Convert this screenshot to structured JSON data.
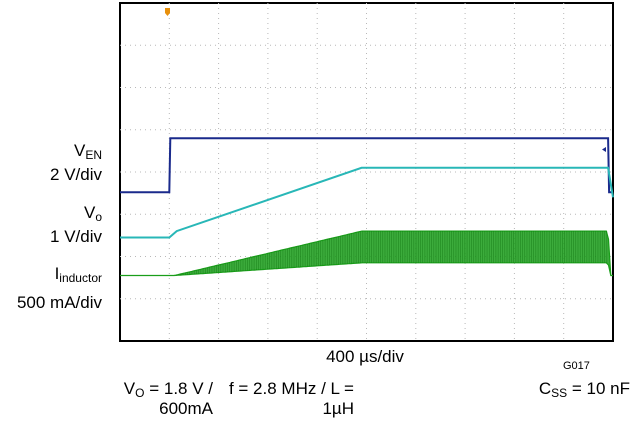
{
  "chart_data": {
    "type": "line",
    "title": "",
    "grid": true,
    "time_scale": "400 µs/div",
    "figure_id": "G017",
    "channel_labels": [
      {
        "name": "V",
        "sub": "EN",
        "scale": "2 V/div"
      },
      {
        "name": "V",
        "sub": "o",
        "scale": "1 V/div"
      },
      {
        "name": "I",
        "sub": "inductor",
        "scale": "500 mA/div"
      }
    ],
    "conditions": {
      "vo": {
        "name": "V",
        "sub": "O",
        "text1": " = 1.8 V /",
        "text2": "600mA"
      },
      "f": {
        "text1": "f = 2.8 MHz / L =",
        "text2": "1µH"
      },
      "css": {
        "name": "C",
        "sub": "SS",
        "text": " = 10 nF"
      }
    },
    "x_divisions": 10,
    "y_divisions": 8,
    "x_unit": "div",
    "series": [
      {
        "color": "#1a2a8c",
        "x": [
          0,
          1.0,
          1.02,
          9.9,
          9.92,
          10
        ],
        "y": [
          3.52,
          3.52,
          4.8,
          4.8,
          3.52,
          3.52
        ]
      },
      {
        "color": "#28b7b7",
        "x": [
          0,
          1.0,
          1.15,
          4.9,
          9.9,
          10.0,
          10.3,
          10.6,
          11
        ],
        "y": [
          2.45,
          2.45,
          2.6,
          4.1,
          4.1,
          3.4,
          2.95,
          2.75,
          2.6
        ]
      },
      {
        "color": "#1a9e1a",
        "x": [
          0,
          1.1,
          4.9,
          9.9,
          9.95,
          11
        ],
        "y": [
          1.55,
          1.55,
          2.6,
          2.6,
          1.55,
          1.55
        ],
        "ripple_low": [
          1.55,
          1.55,
          1.85,
          1.85,
          1.55,
          1.55
        ]
      }
    ]
  }
}
